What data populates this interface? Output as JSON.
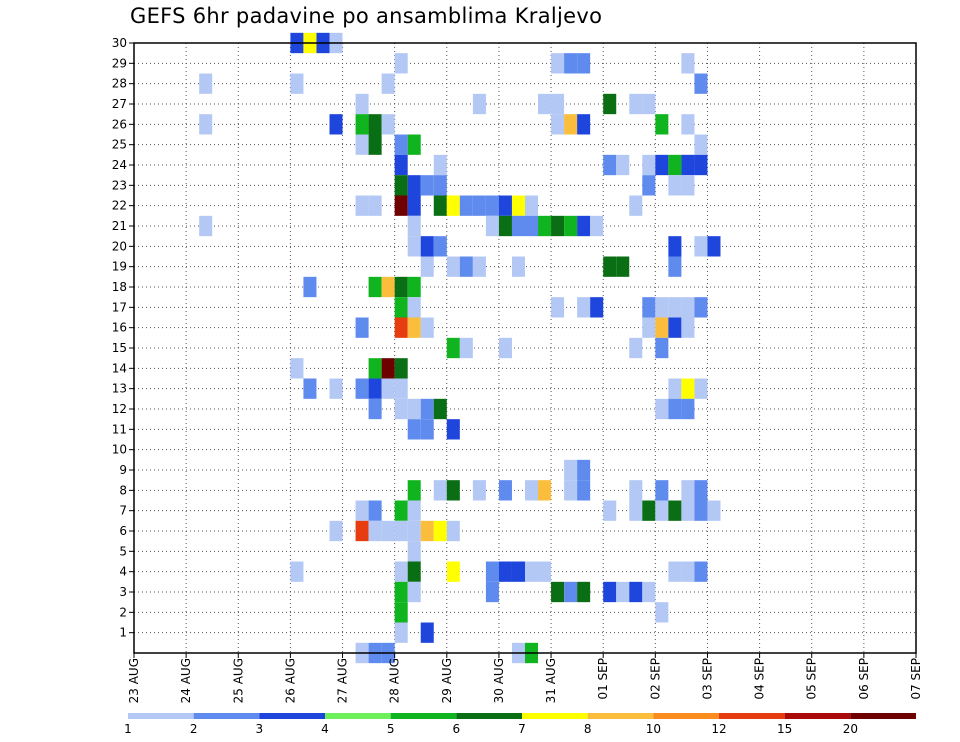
{
  "chart_data": {
    "type": "heatmap",
    "title": "GEFS 6hr padavine po ansamblima Kraljevo",
    "xlabel": "",
    "ylabel": "",
    "x_ticks": [
      "23 AUG",
      "24 AUG",
      "25 AUG",
      "26 AUG",
      "27 AUG",
      "28 AUG",
      "29 AUG",
      "30 AUG",
      "31 AUG",
      "01 SEP",
      "02 SEP",
      "03 SEP",
      "04 SEP",
      "05 SEP",
      "06 SEP",
      "07 SEP"
    ],
    "y_ticks": [
      "1",
      "2",
      "3",
      "4",
      "5",
      "6",
      "7",
      "8",
      "9",
      "10",
      "11",
      "12",
      "13",
      "14",
      "15",
      "16",
      "17",
      "18",
      "19",
      "20",
      "21",
      "22",
      "23",
      "24",
      "25",
      "26",
      "27",
      "28",
      "29",
      "30"
    ],
    "y_range": [
      0,
      30
    ],
    "x_range_days": [
      0,
      15
    ],
    "grid": true,
    "color_levels": [
      "1",
      "2",
      "3",
      "4",
      "5",
      "6",
      "7",
      "8",
      "10",
      "12",
      "15",
      "20"
    ],
    "color_scale": [
      "#b4c8f5",
      "#5f8bef",
      "#1e46dc",
      "#6ef05a",
      "#10b41e",
      "#0a6e14",
      "#ffff00",
      "#fabe3c",
      "#fa8c1e",
      "#e63c0f",
      "#aa0a0a",
      "#6e0000"
    ],
    "cell_layout": "cells are 6-hour steps (4 per day) starting at 23 AUG; y is ensemble member; level index into color_scale",
    "cells": [
      [
        0,
        30,
        12,
        2
      ],
      [
        0,
        30,
        13,
        6
      ],
      [
        0,
        30,
        14,
        2
      ],
      [
        0,
        30,
        15,
        0
      ],
      [
        1,
        29,
        20,
        0
      ],
      [
        1,
        29,
        32,
        0
      ],
      [
        1,
        29,
        33,
        1
      ],
      [
        1,
        29,
        34,
        1
      ],
      [
        1,
        29,
        42,
        0
      ],
      [
        2,
        28,
        5,
        0
      ],
      [
        2,
        28,
        12,
        0
      ],
      [
        2,
        28,
        19,
        0
      ],
      [
        2,
        28,
        43,
        1
      ],
      [
        3,
        27,
        17,
        0
      ],
      [
        3,
        27,
        26,
        0
      ],
      [
        3,
        27,
        31,
        0
      ],
      [
        3,
        27,
        32,
        0
      ],
      [
        3,
        27,
        36,
        5
      ],
      [
        3,
        27,
        38,
        0
      ],
      [
        3,
        27,
        39,
        0
      ],
      [
        4,
        26,
        5,
        0
      ],
      [
        4,
        26,
        15,
        2
      ],
      [
        4,
        26,
        17,
        4
      ],
      [
        4,
        26,
        18,
        5
      ],
      [
        4,
        26,
        19,
        0
      ],
      [
        4,
        26,
        32,
        0
      ],
      [
        4,
        26,
        33,
        7
      ],
      [
        4,
        26,
        34,
        2
      ],
      [
        4,
        26,
        40,
        4
      ],
      [
        4,
        26,
        42,
        0
      ],
      [
        5,
        25,
        17,
        0
      ],
      [
        5,
        25,
        18,
        5
      ],
      [
        5,
        25,
        20,
        1
      ],
      [
        5,
        25,
        21,
        4
      ],
      [
        5,
        25,
        43,
        0
      ],
      [
        6,
        24,
        20,
        2
      ],
      [
        6,
        24,
        23,
        0
      ],
      [
        6,
        24,
        36,
        1
      ],
      [
        6,
        24,
        37,
        0
      ],
      [
        6,
        24,
        39,
        0
      ],
      [
        6,
        24,
        40,
        2
      ],
      [
        6,
        24,
        41,
        4
      ],
      [
        6,
        24,
        42,
        2
      ],
      [
        6,
        24,
        43,
        2
      ],
      [
        7,
        23,
        20,
        5
      ],
      [
        7,
        23,
        21,
        2
      ],
      [
        7,
        23,
        22,
        1
      ],
      [
        7,
        23,
        23,
        1
      ],
      [
        7,
        23,
        39,
        1
      ],
      [
        7,
        23,
        41,
        0
      ],
      [
        7,
        23,
        42,
        0
      ],
      [
        8,
        22,
        17,
        0
      ],
      [
        8,
        22,
        18,
        0
      ],
      [
        8,
        22,
        20,
        11
      ],
      [
        8,
        22,
        21,
        2
      ],
      [
        8,
        22,
        23,
        5
      ],
      [
        8,
        22,
        24,
        6
      ],
      [
        8,
        22,
        25,
        1
      ],
      [
        8,
        22,
        26,
        1
      ],
      [
        8,
        22,
        27,
        1
      ],
      [
        8,
        22,
        28,
        2
      ],
      [
        8,
        22,
        29,
        6
      ],
      [
        8,
        22,
        30,
        0
      ],
      [
        8,
        22,
        38,
        0
      ],
      [
        9,
        21,
        5,
        0
      ],
      [
        9,
        21,
        21,
        0
      ],
      [
        9,
        21,
        27,
        0
      ],
      [
        9,
        21,
        28,
        5
      ],
      [
        9,
        21,
        29,
        1
      ],
      [
        9,
        21,
        30,
        1
      ],
      [
        9,
        21,
        31,
        4
      ],
      [
        9,
        21,
        32,
        5
      ],
      [
        9,
        21,
        33,
        4
      ],
      [
        9,
        21,
        34,
        2
      ],
      [
        9,
        21,
        35,
        0
      ],
      [
        10,
        20,
        21,
        0
      ],
      [
        10,
        20,
        22,
        2
      ],
      [
        10,
        20,
        23,
        1
      ],
      [
        10,
        20,
        41,
        2
      ],
      [
        10,
        20,
        43,
        0
      ],
      [
        10,
        20,
        44,
        2
      ],
      [
        11,
        19,
        22,
        0
      ],
      [
        11,
        19,
        24,
        0
      ],
      [
        11,
        19,
        25,
        1
      ],
      [
        11,
        19,
        26,
        0
      ],
      [
        11,
        19,
        29,
        0
      ],
      [
        11,
        19,
        36,
        5
      ],
      [
        11,
        19,
        37,
        5
      ],
      [
        11,
        19,
        41,
        1
      ],
      [
        12,
        18,
        13,
        1
      ],
      [
        12,
        18,
        18,
        4
      ],
      [
        12,
        18,
        19,
        7
      ],
      [
        12,
        18,
        20,
        5
      ],
      [
        12,
        18,
        21,
        4
      ],
      [
        13,
        17,
        20,
        4
      ],
      [
        13,
        17,
        21,
        0
      ],
      [
        13,
        17,
        32,
        0
      ],
      [
        13,
        17,
        34,
        0
      ],
      [
        13,
        17,
        35,
        2
      ],
      [
        13,
        17,
        39,
        1
      ],
      [
        13,
        17,
        40,
        0
      ],
      [
        13,
        17,
        41,
        0
      ],
      [
        13,
        17,
        42,
        0
      ],
      [
        13,
        17,
        43,
        1
      ],
      [
        14,
        16,
        17,
        1
      ],
      [
        14,
        16,
        20,
        9
      ],
      [
        14,
        16,
        21,
        7
      ],
      [
        14,
        16,
        22,
        0
      ],
      [
        14,
        16,
        39,
        0
      ],
      [
        14,
        16,
        40,
        7
      ],
      [
        14,
        16,
        41,
        2
      ],
      [
        14,
        16,
        42,
        0
      ],
      [
        15,
        15,
        24,
        4
      ],
      [
        15,
        15,
        25,
        0
      ],
      [
        15,
        15,
        28,
        0
      ],
      [
        15,
        15,
        38,
        0
      ],
      [
        15,
        15,
        40,
        1
      ],
      [
        16,
        14,
        12,
        0
      ],
      [
        16,
        14,
        18,
        4
      ],
      [
        16,
        14,
        19,
        11
      ],
      [
        16,
        14,
        20,
        5
      ],
      [
        17,
        13,
        13,
        1
      ],
      [
        17,
        13,
        15,
        0
      ],
      [
        17,
        13,
        17,
        1
      ],
      [
        17,
        13,
        18,
        2
      ],
      [
        17,
        13,
        19,
        0
      ],
      [
        17,
        13,
        20,
        0
      ],
      [
        17,
        13,
        41,
        0
      ],
      [
        17,
        13,
        42,
        6
      ],
      [
        17,
        13,
        43,
        0
      ],
      [
        18,
        12,
        18,
        1
      ],
      [
        18,
        12,
        20,
        0
      ],
      [
        18,
        12,
        21,
        0
      ],
      [
        18,
        12,
        22,
        1
      ],
      [
        18,
        12,
        23,
        5
      ],
      [
        18,
        12,
        40,
        0
      ],
      [
        18,
        12,
        41,
        1
      ],
      [
        18,
        12,
        42,
        1
      ],
      [
        19,
        11,
        21,
        1
      ],
      [
        19,
        11,
        22,
        1
      ],
      [
        19,
        11,
        24,
        2
      ],
      [
        20,
        9,
        33,
        0
      ],
      [
        20,
        9,
        34,
        1
      ],
      [
        21,
        8,
        21,
        4
      ],
      [
        21,
        8,
        23,
        0
      ],
      [
        21,
        8,
        24,
        5
      ],
      [
        21,
        8,
        26,
        0
      ],
      [
        21,
        8,
        28,
        1
      ],
      [
        21,
        8,
        30,
        0
      ],
      [
        21,
        8,
        31,
        7
      ],
      [
        21,
        8,
        33,
        0
      ],
      [
        21,
        8,
        34,
        1
      ],
      [
        21,
        8,
        38,
        0
      ],
      [
        21,
        8,
        40,
        1
      ],
      [
        21,
        8,
        42,
        0
      ],
      [
        21,
        8,
        43,
        1
      ],
      [
        22,
        7,
        17,
        0
      ],
      [
        22,
        7,
        18,
        1
      ],
      [
        22,
        7,
        20,
        4
      ],
      [
        22,
        7,
        21,
        0
      ],
      [
        22,
        7,
        36,
        0
      ],
      [
        22,
        7,
        38,
        0
      ],
      [
        22,
        7,
        39,
        5
      ],
      [
        22,
        7,
        40,
        0
      ],
      [
        22,
        7,
        41,
        5
      ],
      [
        22,
        7,
        42,
        0
      ],
      [
        22,
        7,
        43,
        1
      ],
      [
        22,
        7,
        44,
        0
      ],
      [
        23,
        6,
        15,
        0
      ],
      [
        23,
        6,
        17,
        9
      ],
      [
        23,
        6,
        18,
        0
      ],
      [
        23,
        6,
        19,
        0
      ],
      [
        23,
        6,
        20,
        0
      ],
      [
        23,
        6,
        21,
        0
      ],
      [
        23,
        6,
        22,
        7
      ],
      [
        23,
        6,
        23,
        6
      ],
      [
        23,
        6,
        24,
        0
      ],
      [
        24,
        5,
        21,
        0
      ],
      [
        25,
        4,
        12,
        0
      ],
      [
        25,
        4,
        20,
        0
      ],
      [
        25,
        4,
        21,
        5
      ],
      [
        25,
        4,
        24,
        6
      ],
      [
        25,
        4,
        27,
        1
      ],
      [
        25,
        4,
        28,
        2
      ],
      [
        25,
        4,
        29,
        2
      ],
      [
        25,
        4,
        30,
        0
      ],
      [
        25,
        4,
        31,
        0
      ],
      [
        25,
        4,
        41,
        0
      ],
      [
        25,
        4,
        42,
        0
      ],
      [
        25,
        4,
        43,
        1
      ],
      [
        26,
        3,
        20,
        4
      ],
      [
        26,
        3,
        21,
        0
      ],
      [
        26,
        3,
        27,
        1
      ],
      [
        26,
        3,
        32,
        5
      ],
      [
        26,
        3,
        33,
        1
      ],
      [
        26,
        3,
        34,
        5
      ],
      [
        26,
        3,
        36,
        2
      ],
      [
        26,
        3,
        37,
        0
      ],
      [
        26,
        3,
        38,
        2
      ],
      [
        26,
        3,
        39,
        0
      ],
      [
        27,
        2,
        20,
        4
      ],
      [
        27,
        2,
        40,
        0
      ],
      [
        28,
        1,
        20,
        0
      ],
      [
        28,
        1,
        22,
        2
      ],
      [
        29,
        0,
        17,
        0
      ],
      [
        29,
        0,
        18,
        1
      ],
      [
        29,
        0,
        19,
        1
      ],
      [
        29,
        0,
        29,
        0
      ],
      [
        29,
        0,
        30,
        4
      ]
    ]
  }
}
